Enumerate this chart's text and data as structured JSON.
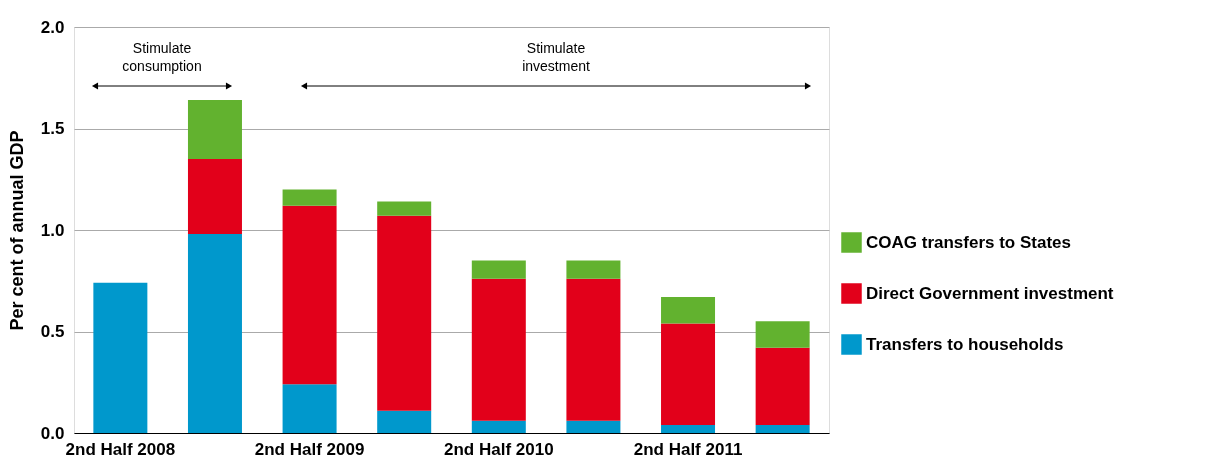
{
  "chart_data": {
    "type": "bar",
    "stacked": true,
    "ylabel": "Per cent of annual GDP",
    "categories": [
      "2nd Half 2008",
      null,
      "2nd Half 2009",
      null,
      "2nd Half 2010",
      null,
      "2nd Half 2011",
      null
    ],
    "series": [
      {
        "name": "Transfers to households",
        "color": "#0098cc",
        "values": [
          0.74,
          0.98,
          0.24,
          0.11,
          0.06,
          0.06,
          0.04,
          0.04
        ]
      },
      {
        "name": "Direct Government investment",
        "color": "#e2001a",
        "values": [
          0,
          0.37,
          0.88,
          0.96,
          0.7,
          0.7,
          0.5,
          0.38
        ]
      },
      {
        "name": "COAG transfers to States",
        "color": "#62b22f",
        "values": [
          0,
          0.29,
          0.08,
          0.07,
          0.09,
          0.09,
          0.13,
          0.13
        ]
      }
    ],
    "ylim": [
      0,
      2.0
    ],
    "yticks": [
      {
        "value": 0,
        "label": "0.0"
      },
      0.5,
      {
        "value": 1,
        "label": "1.0"
      },
      1.5,
      {
        "value": 2,
        "label": "2.0"
      }
    ],
    "grid": "y",
    "legend": "right",
    "annotations": [
      "Stimulate\nconsumption",
      "Stimulate\ninvestment"
    ]
  }
}
